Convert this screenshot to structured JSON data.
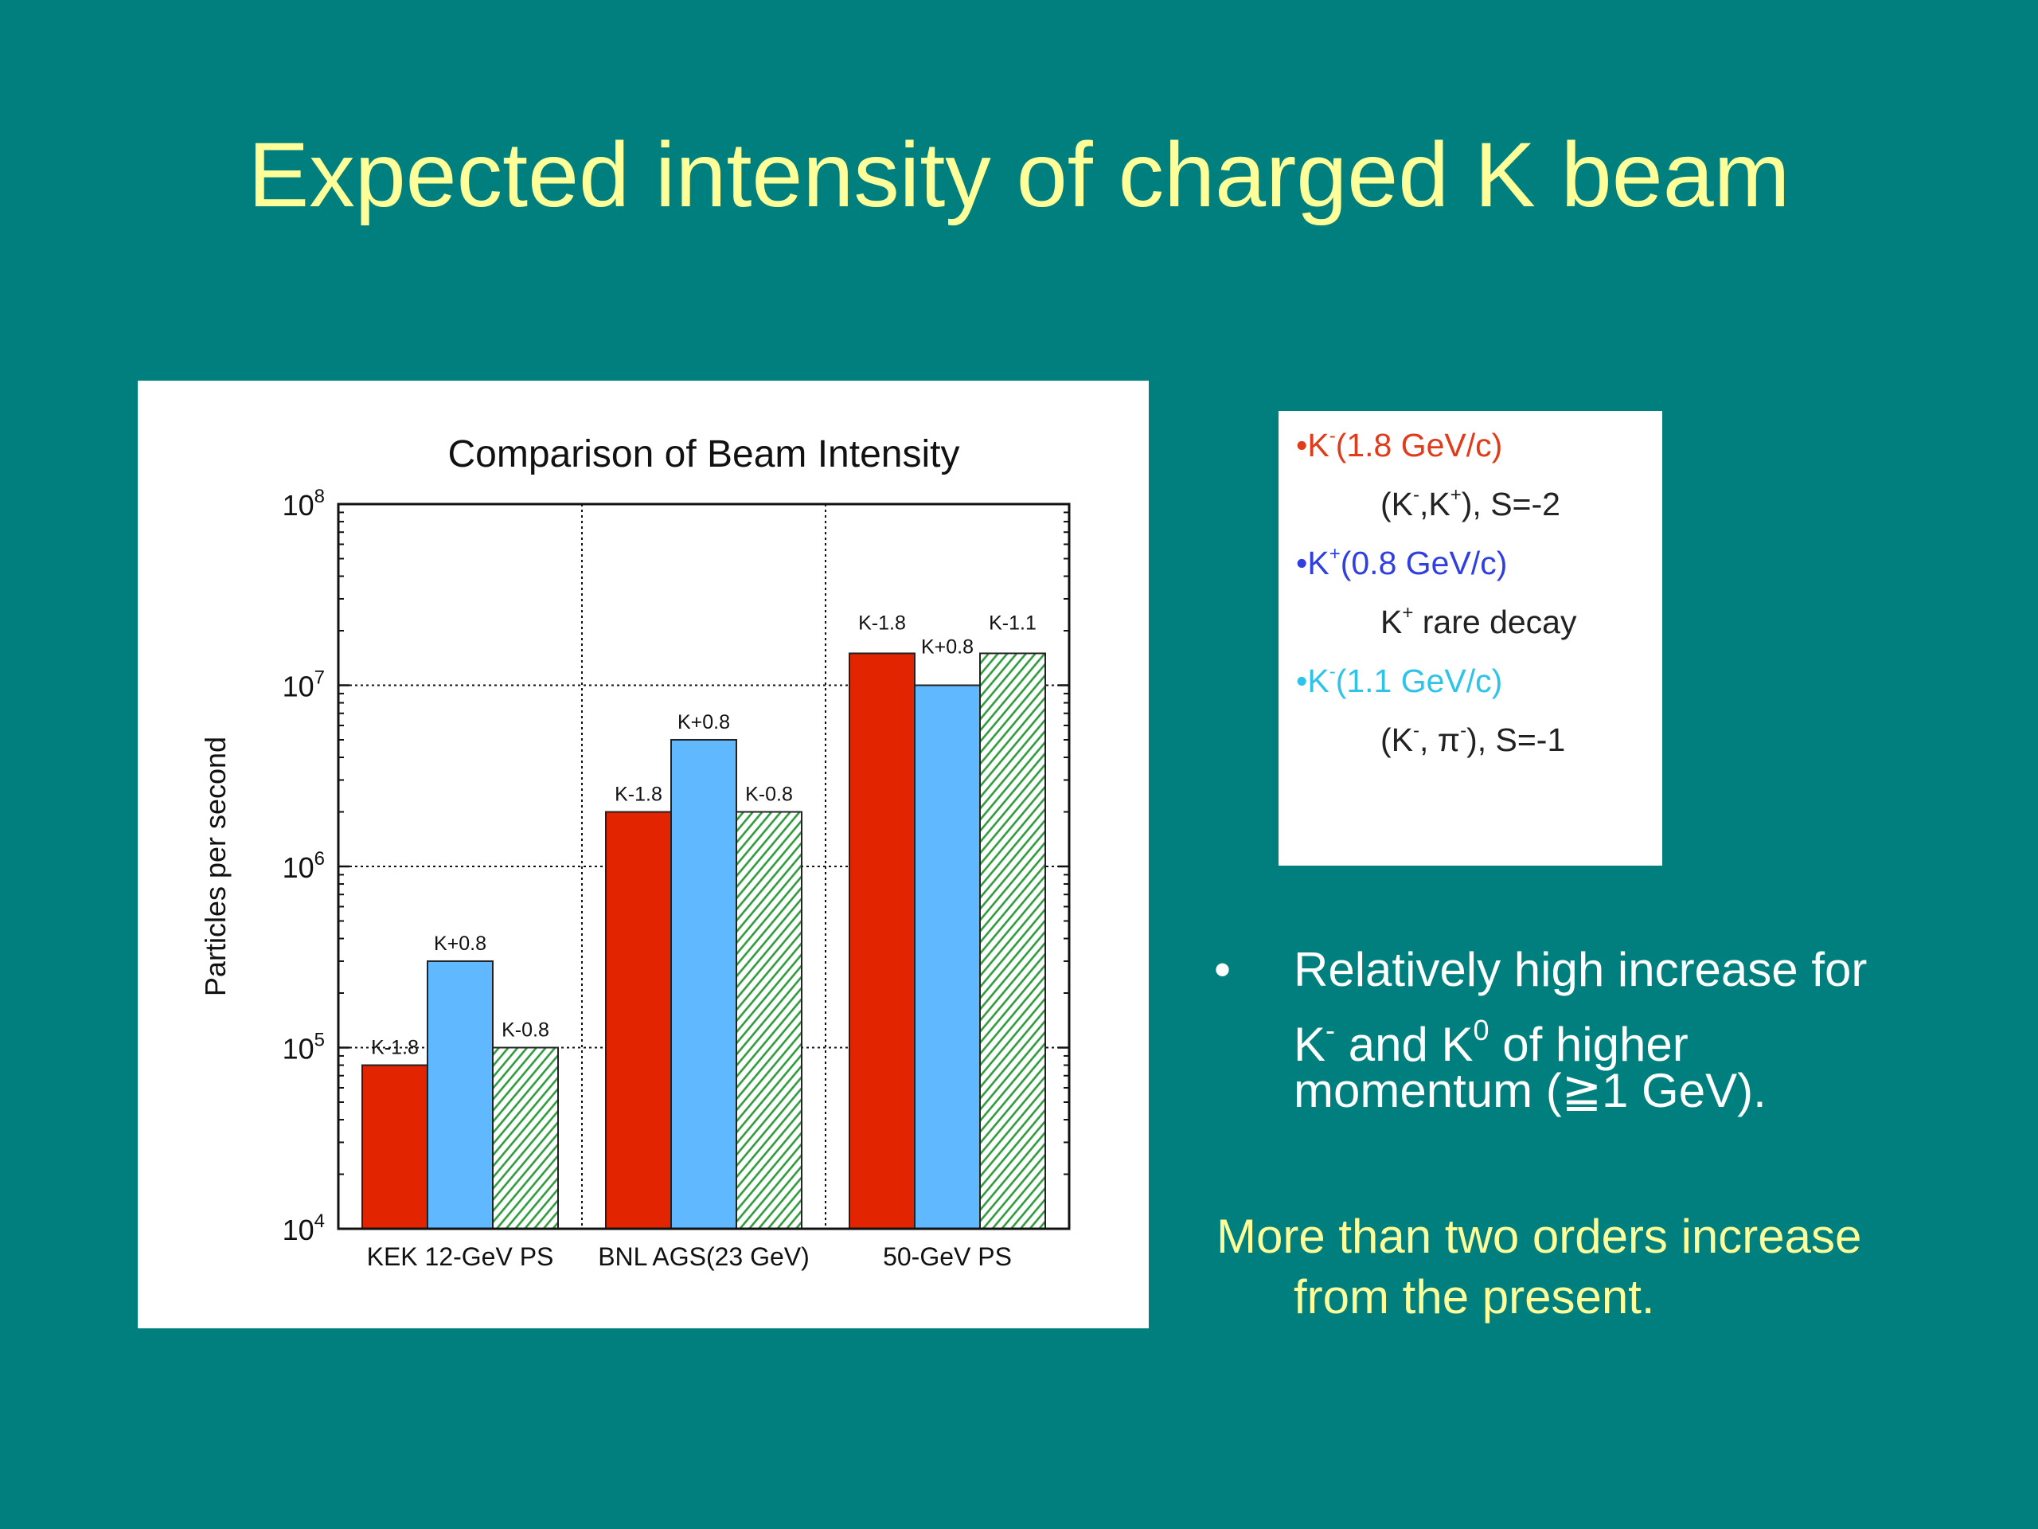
{
  "slide": {
    "title": "Expected intensity of charged K beam",
    "background": "#007f7f",
    "title_color": "#ffff99"
  },
  "chart_data": {
    "type": "bar",
    "title": "Comparison of Beam Intensity",
    "xlabel": "",
    "ylabel": "Particles per second",
    "yscale": "log",
    "ylim": [
      10000,
      100000000
    ],
    "yticks": [
      {
        "base": "10",
        "exp": "4"
      },
      {
        "base": "10",
        "exp": "5"
      },
      {
        "base": "10",
        "exp": "6"
      },
      {
        "base": "10",
        "exp": "7"
      },
      {
        "base": "10",
        "exp": "8"
      }
    ],
    "grid": true,
    "categories": [
      "KEK 12-GeV PS",
      "BNL AGS(23 GeV)",
      "50-GeV PS"
    ],
    "groups": [
      {
        "bars": [
          {
            "label": "K-1.8",
            "value": 80000,
            "style": "solid",
            "color": "#e32400"
          },
          {
            "label": "K+0.8",
            "value": 300000,
            "style": "solid",
            "color": "#60b8ff"
          },
          {
            "label": "K-0.8",
            "value": 100000,
            "style": "hatch",
            "color": "#2e9a3c"
          }
        ]
      },
      {
        "bars": [
          {
            "label": "K-1.8",
            "value": 2000000,
            "style": "solid",
            "color": "#e32400"
          },
          {
            "label": "K+0.8",
            "value": 5000000,
            "style": "solid",
            "color": "#60b8ff"
          },
          {
            "label": "K-0.8",
            "value": 2000000,
            "style": "hatch",
            "color": "#2e9a3c"
          }
        ]
      },
      {
        "bars": [
          {
            "label": "K-1.8",
            "value": 15000000,
            "style": "solid",
            "color": "#e32400"
          },
          {
            "label": "K+0.8",
            "value": 10000000,
            "style": "solid",
            "color": "#60b8ff"
          },
          {
            "label": "K-1.1",
            "value": 15000000,
            "style": "hatch",
            "color": "#2e9a3c"
          }
        ]
      }
    ]
  },
  "legend": {
    "items": [
      {
        "bullet": "•",
        "base": "K",
        "sup": "-",
        "text": "(1.8 GeV/c)",
        "color": "#e03b1a",
        "sub": {
          "pre": "(K",
          "sup1": "-",
          "mid": ",K",
          "sup2": "+",
          "post": "), S=-2"
        }
      },
      {
        "bullet": "•",
        "base": "K",
        "sup": "+",
        "text": "(0.8 GeV/c)",
        "color": "#2f3fe0",
        "sub": {
          "pre": "K",
          "sup1": "+",
          "mid": " rare decay",
          "sup2": "",
          "post": ""
        }
      },
      {
        "bullet": "•",
        "base": "K",
        "sup": "-",
        "text": "(1.1 GeV/c)",
        "color": "#2ec4ea",
        "sub": {
          "pre": "(K",
          "sup1": "-",
          "mid": ", π",
          "sup2": "-",
          "post": "), S=-1"
        }
      }
    ]
  },
  "bullet": {
    "dot": "•",
    "line1": "Relatively high increase for",
    "line2_a": "K",
    "line2_sup1": "-",
    "line2_b": " and K",
    "line2_sup2": "0",
    "line2_c": " of higher",
    "line3": "momentum  (≧1 GeV)."
  },
  "note": {
    "line1": "More than two orders increase",
    "line2": "from the present."
  }
}
